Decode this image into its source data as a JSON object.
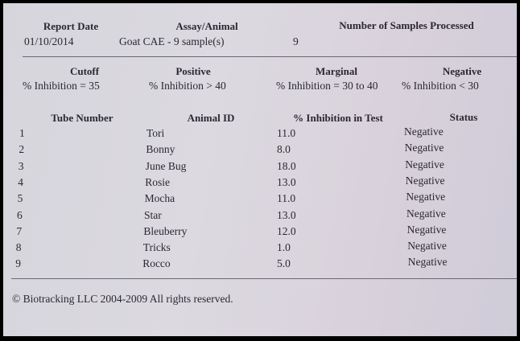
{
  "header": {
    "report_date_label": "Report Date",
    "report_date": "01/10/2014",
    "assay_label": "Assay/Animal",
    "assay": "Goat CAE - 9 sample(s)",
    "samples_label": "Number of Samples Processed",
    "samples": "9"
  },
  "criteria": {
    "cutoff_label": "Cutoff",
    "cutoff": "% Inhibition = 35",
    "positive_label": "Positive",
    "positive": "% Inhibition > 40",
    "marginal_label": "Marginal",
    "marginal": "% Inhibition = 30 to 40",
    "negative_label": "Negative",
    "negative": "% Inhibition < 30"
  },
  "table": {
    "columns": [
      "Tube Number",
      "Animal ID",
      "% Inhibition in Test",
      "Status"
    ],
    "rows": [
      {
        "tube": "1",
        "animal": "Tori",
        "inhibition": "11.0",
        "status": "Negative"
      },
      {
        "tube": "2",
        "animal": "Bonny",
        "inhibition": "8.0",
        "status": "Negative"
      },
      {
        "tube": "3",
        "animal": "June Bug",
        "inhibition": "18.0",
        "status": "Negative"
      },
      {
        "tube": "4",
        "animal": "Rosie",
        "inhibition": "13.0",
        "status": "Negative"
      },
      {
        "tube": "5",
        "animal": "Mocha",
        "inhibition": "11.0",
        "status": "Negative"
      },
      {
        "tube": "6",
        "animal": "Star",
        "inhibition": "13.0",
        "status": "Negative"
      },
      {
        "tube": "7",
        "animal": "Bleuberry",
        "inhibition": "12.0",
        "status": "Negative"
      },
      {
        "tube": "8",
        "animal": "Tricks",
        "inhibition": "1.0",
        "status": "Negative"
      },
      {
        "tube": "9",
        "animal": "Rocco",
        "inhibition": "5.0",
        "status": "Negative"
      }
    ]
  },
  "footer": "© Biotracking LLC 2004-2009 All rights reserved."
}
